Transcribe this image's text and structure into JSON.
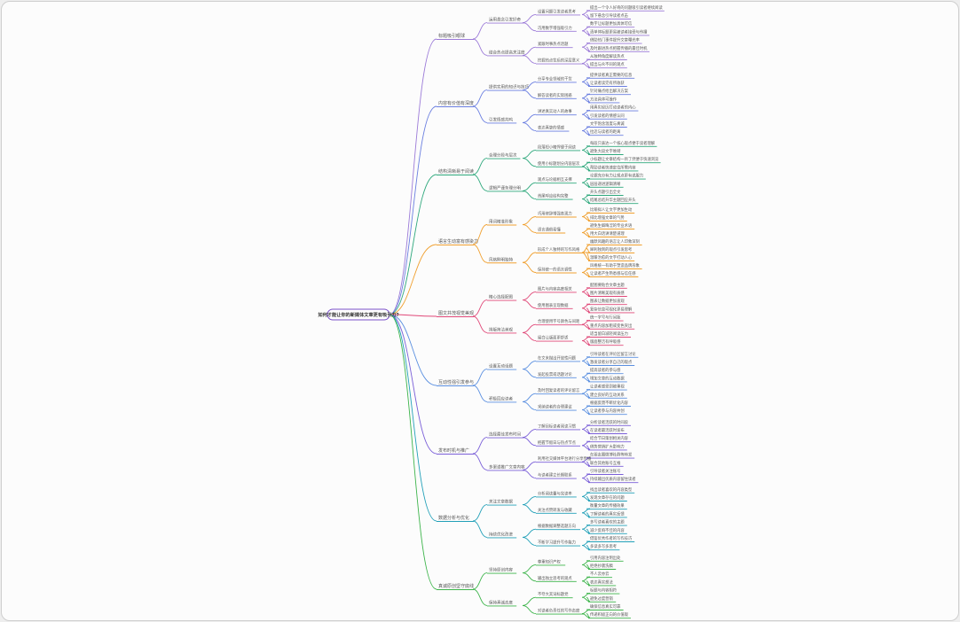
{
  "root": "如何才能让你的新媒体文章更有吸引力?",
  "colors": [
    "#9c7bd8",
    "#6a7ee0",
    "#2ea87c",
    "#f0a030",
    "#e04878",
    "#5a8fe0",
    "#7a5fd8",
    "#22a0b8",
    "#3cb44a"
  ],
  "topics": [
    {
      "label": "标题吸引眼球",
      "subs": [
        {
          "label": "运用悬念引发好奇",
          "leaves": [
            {
              "label": "设置问题引发读者思考",
              "details": [
                "提出一个令人好奇的问题吸引读者继续阅读",
                "留下悬念引导读者点击"
              ]
            },
            {
              "label": "巧用数字增强吸引力",
              "details": [
                "数字让标题更加具体可信",
                "清单体标题更易被读者接受与传播"
              ]
            }
          ]
        },
        {
          "label": "结合热点提高关注度",
          "leaves": [
            {
              "label": "紧跟时事热点话题",
              "details": [
                "借助热门事件提升文章曝光率",
                "及时跟进热点把握传播的最佳时机"
              ]
            },
            {
              "label": "挖掘热点背后的深层意义",
              "details": [
                "从独特角度解读热点",
                "提出与众不同的观点"
              ]
            }
          ]
        }
      ]
    },
    {
      "label": "内容有价值有深度",
      "subs": [
        {
          "label": "提供实用的知识与技巧",
          "leaves": [
            {
              "label": "分享专业领域的干货",
              "details": [
                "提供读者真正需要的信息",
                "让读者读完有所收获"
              ]
            },
            {
              "label": "解答读者的实际困惑",
              "details": [
                "针对痛点给出解决方案",
                "方法具体可操作"
              ]
            }
          ]
        },
        {
          "label": "引发情感共鸣",
          "leaves": [
            {
              "label": "讲述真实动人的故事",
              "details": [
                "用真实经历打动读者的内心",
                "引发读者的情感认同"
              ]
            },
            {
              "label": "表达真挚的情感",
              "details": [
                "文字饱含温度与真诚",
                "拉近与读者的距离"
              ]
            }
          ]
        }
      ]
    },
    {
      "label": "结构清晰易于阅读",
      "subs": [
        {
          "label": "合理分段与层次",
          "leaves": [
            {
              "label": "段落短小精悍便于阅读",
              "details": [
                "每段只表达一个核心观点便于读者理解",
                "避免大段文字堆砌"
              ]
            },
            {
              "label": "使用小标题划分内容层次",
              "details": [
                "小标题让文章结构一目了然便于快速浏览",
                "帮助读者快速定位所需内容"
              ]
            }
          ]
        },
        {
          "label": "逻辑严谨条理分明",
          "leaves": [
            {
              "label": "观点与论据相互支撑",
              "details": [
                "论据充分有力让观点更有说服力",
                "层层递进逻辑清晰"
              ]
            },
            {
              "label": "首尾呼应结构完整",
              "details": [
                "开头点题引出全文",
                "结尾总结升华主题回应开头"
              ]
            }
          ]
        }
      ]
    },
    {
      "label": "语言生动富有感染力",
      "subs": [
        {
          "label": "用词精准形象",
          "leaves": [
            {
              "label": "巧用修辞增强表现力",
              "details": [
                "比喻拟人让文字更加生动",
                "排比增强文章的气势"
              ]
            },
            {
              "label": "语言通俗易懂",
              "details": [
                "避免生僻晦涩的专业术语",
                "用大白话讲清楚道理"
              ]
            }
          ]
        },
        {
          "label": "风格鲜明独特",
          "leaves": [
            {
              "label": "形成个人独特的写作风格",
              "details": [
                "幽默风趣的语言让人印象深刻",
                "犀利独到的观点引发思考",
                "温暖治愈的文字打动人心"
              ]
            },
            {
              "label": "保持统一的语言调性",
              "details": [
                "风格统一有助于塑造品牌形象",
                "让读者产生熟悉感与信任感"
              ]
            }
          ]
        }
      ]
    },
    {
      "label": "图文并茂视觉美观",
      "subs": [
        {
          "label": "精心选择配图",
          "leaves": [
            {
              "label": "图片与内容高度相关",
              "details": [
                "配图要贴合文章主题",
                "图片清晰美观有质感"
              ]
            },
            {
              "label": "使用图表呈现数据",
              "details": [
                "图表让数据更加直观",
                "复杂信息可视化更易理解"
              ]
            }
          ]
        },
        {
          "label": "排版简洁美观",
          "leaves": [
            {
              "label": "合理使用字号颜色与间距",
              "details": [
                "统一字号与行间距",
                "重点内容加粗或变色突出"
              ]
            },
            {
              "label": "留白让版面更舒适",
              "details": [
                "适当留白减轻阅读压力",
                "版面整洁有呼吸感"
              ]
            }
          ]
        }
      ]
    },
    {
      "label": "互动性强引发参与",
      "subs": [
        {
          "label": "设置互动话题",
          "leaves": [
            {
              "label": "在文末抛出开放性问题",
              "details": [
                "引导读者在评论区留言讨论",
                "激发读者分享自己的观点"
              ]
            },
            {
              "label": "发起投票或话题讨论",
              "details": [
                "提高读者的参与感",
                "增加文章的互动数据"
              ]
            }
          ]
        },
        {
          "label": "积极回应读者",
          "leaves": [
            {
              "label": "及时回复读者的评论留言",
              "details": [
                "让读者感受到被重视",
                "建立良好的互动关系"
              ]
            },
            {
              "label": "采纳读者的合理建议",
              "details": [
                "根据反馈不断优化内容",
                "让读者参与内容共创"
              ]
            }
          ]
        }
      ]
    },
    {
      "label": "发布时机与推广",
      "subs": [
        {
          "label": "选择最佳发布时间",
          "leaves": [
            {
              "label": "了解目标读者阅读习惯",
              "details": [
                "分析读者活跃的时间段",
                "在读者最活跃时发布"
              ]
            },
            {
              "label": "把握节假日与热点节点",
              "details": [
                "结合节日策划相关内容",
                "借势营销扩大影响力"
              ]
            }
          ]
        },
        {
          "label": "多渠道推广文章内容",
          "leaves": [
            {
              "label": "利用社交媒体平台进行分享传播",
              "details": [
                "在朋友圈微博社群等转发",
                "联合其他账号互推"
              ]
            },
            {
              "label": "与读者建立长期联系",
              "details": [
                "引导读者关注账号",
                "持续输出优质内容留住读者"
              ]
            }
          ]
        }
      ]
    },
    {
      "label": "数据分析与优化",
      "subs": [
        {
          "label": "关注文章数据",
          "leaves": [
            {
              "label": "分析阅读量与完读率",
              "details": [
                "找出读者喜欢的内容类型",
                "发现文章存在的问题"
              ]
            },
            {
              "label": "关注点赞转发与收藏",
              "details": [
                "衡量文章的传播效果",
                "了解读者的真实反馈"
              ]
            }
          ]
        },
        {
          "label": "持续优化改进",
          "leaves": [
            {
              "label": "根据数据调整选题方向",
              "details": [
                "多写读者喜欢的主题",
                "减少反响不佳的内容"
              ]
            },
            {
              "label": "不断学习提升写作能力",
              "details": [
                "借鉴优秀作者的写作技巧",
                "多读多写多思考"
              ]
            }
          ]
        }
      ]
    },
    {
      "label": "真诚原创坚守底线",
      "subs": [
        {
          "label": "坚持原创内容",
          "leaves": [
            {
              "label": "尊重知识产权",
              "details": [
                "引用内容注明出处",
                "拒绝抄袭洗稿"
              ]
            },
            {
              "label": "输出独立思考的观点",
              "details": [
                "不人云亦云",
                "表达真实想法"
              ]
            }
          ]
        },
        {
          "label": "保持真诚态度",
          "leaves": [
            {
              "label": "不夸大其词标题党",
              "details": [
                "标题与内容相符",
                "避免过度营销"
              ]
            },
            {
              "label": "对读者负责任的写作态度",
              "details": [
                "确保信息真实可靠",
                "传递积极正向的价值观"
              ]
            }
          ]
        }
      ]
    }
  ]
}
